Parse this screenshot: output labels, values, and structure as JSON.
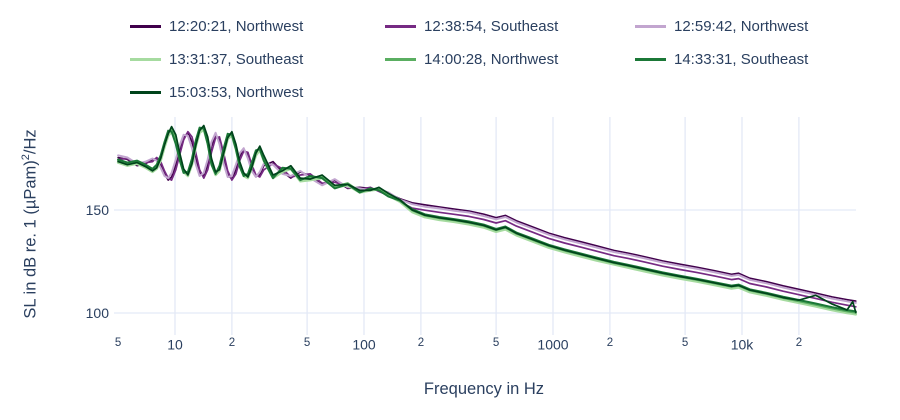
{
  "styles": {
    "background": "#ffffff",
    "text_color": "#2a3f5f",
    "grid_color": "#e3e9f6"
  },
  "chart_data": {
    "type": "line",
    "title": "",
    "xlabel": "Frequency in Hz",
    "ylabel": "SL in dB re. 1 (µPam)²/Hz",
    "ylabel_parts": {
      "pre": "SL in dB re. 1 (µPam)",
      "sup": "2",
      "post": "/Hz"
    },
    "xscale": "log",
    "xlim": [
      4.6,
      41000
    ],
    "ylim": [
      90,
      195
    ],
    "grid": true,
    "legend_position": "top-horizontal",
    "xticks": [
      {
        "value": 5,
        "label": "5",
        "minor": true,
        "grid": false
      },
      {
        "value": 10,
        "label": "10",
        "minor": false
      },
      {
        "value": 20,
        "label": "2",
        "minor": true
      },
      {
        "value": 50,
        "label": "5",
        "minor": true
      },
      {
        "value": 100,
        "label": "100",
        "minor": false
      },
      {
        "value": 200,
        "label": "2",
        "minor": true
      },
      {
        "value": 500,
        "label": "5",
        "minor": true
      },
      {
        "value": 1000,
        "label": "1000",
        "minor": false
      },
      {
        "value": 2000,
        "label": "2",
        "minor": true
      },
      {
        "value": 5000,
        "label": "5",
        "minor": true
      },
      {
        "value": 10000,
        "label": "10k",
        "minor": false
      },
      {
        "value": 20000,
        "label": "2",
        "minor": true
      }
    ],
    "yticks": [
      {
        "value": 150,
        "label": "150"
      },
      {
        "value": 100,
        "label": "100"
      }
    ],
    "x": [
      5,
      5.6,
      6.3,
      7,
      7.6,
      8,
      8.4,
      8.8,
      9.2,
      9.6,
      10.1,
      10.6,
      11.1,
      11.7,
      12.3,
      12.9,
      13.5,
      14.2,
      14.9,
      15.6,
      16.4,
      17.2,
      18.1,
      19,
      20,
      21,
      22,
      23.1,
      24.3,
      25.5,
      26.8,
      28.1,
      29.5,
      33,
      37,
      41,
      46,
      52,
      60,
      70,
      82,
      95,
      108,
      120,
      135,
      155,
      180,
      210,
      250,
      300,
      360,
      430,
      500,
      560,
      640,
      780,
      950,
      1150,
      1400,
      1700,
      2100,
      2500,
      3100,
      3800,
      4700,
      5800,
      7200,
      8800,
      9600,
      11000,
      13500,
      16500,
      20000,
      24500,
      30000,
      36000,
      38500,
      40000
    ],
    "series": [
      {
        "name": "12:20:21, Northwest",
        "color": "#40004b",
        "width": 1.6,
        "values": [
          175.5,
          174.5,
          171.5,
          172.5,
          174.5,
          175.0,
          172.0,
          167.5,
          164.5,
          166.0,
          172.0,
          179.5,
          185.5,
          187.5,
          183.0,
          174.5,
          168.0,
          166.5,
          172.0,
          181.0,
          186.5,
          184.0,
          174.5,
          167.0,
          165.0,
          169.5,
          176.0,
          179.5,
          176.5,
          170.5,
          166.5,
          167.0,
          171.5,
          173.5,
          168.5,
          165.5,
          168.5,
          166.5,
          162.5,
          164.5,
          160.5,
          161.0,
          160.5,
          159.5,
          158.0,
          155.5,
          153.5,
          152.5,
          151.5,
          150.5,
          149.5,
          148.0,
          146.3,
          147.4,
          144.8,
          141.8,
          138.8,
          136.6,
          134.6,
          132.6,
          130.4,
          129.1,
          127.2,
          125.3,
          123.7,
          122.2,
          120.5,
          118.8,
          119.3,
          116.9,
          115.2,
          113.2,
          111.5,
          109.7,
          107.8,
          106.5,
          106.0,
          105.8
        ]
      },
      {
        "name": "12:38:54, Southeast",
        "color": "#762a83",
        "width": 1.7,
        "values": [
          174.5,
          175.0,
          172.0,
          173.0,
          173.5,
          175.5,
          173.5,
          169.0,
          165.5,
          164.5,
          169.5,
          177.0,
          184.0,
          188.0,
          185.5,
          177.5,
          169.5,
          165.5,
          169.5,
          178.0,
          185.0,
          185.5,
          177.5,
          169.0,
          164.5,
          167.5,
          174.0,
          178.5,
          178.0,
          172.0,
          167.0,
          166.0,
          169.5,
          172.5,
          170.0,
          166.0,
          167.0,
          167.5,
          163.0,
          163.5,
          161.5,
          160.0,
          161.0,
          159.0,
          157.0,
          154.0,
          150.9,
          149.9,
          148.9,
          147.9,
          146.9,
          145.4,
          143.7,
          144.8,
          142.2,
          139.2,
          136.2,
          134.0,
          132.0,
          130.0,
          127.8,
          126.5,
          124.6,
          122.7,
          121.1,
          119.6,
          117.9,
          116.2,
          116.7,
          114.3,
          112.6,
          110.6,
          108.9,
          107.1,
          105.2,
          103.8,
          103.3,
          103.0
        ]
      },
      {
        "name": "12:59:42, Northwest",
        "color": "#c2a5cf",
        "width": 2.0,
        "values": [
          176.5,
          175.5,
          172.5,
          173.5,
          175.0,
          174.0,
          170.5,
          166.5,
          165.5,
          168.0,
          174.5,
          181.5,
          186.5,
          186.0,
          180.0,
          172.0,
          166.5,
          168.0,
          174.5,
          183.0,
          187.5,
          182.0,
          172.5,
          166.0,
          166.5,
          172.0,
          177.5,
          180.0,
          175.0,
          169.0,
          166.0,
          168.5,
          172.5,
          172.0,
          167.5,
          166.5,
          169.0,
          165.5,
          162.0,
          165.0,
          161.0,
          160.5,
          159.5,
          160.0,
          158.5,
          155.0,
          152.8,
          151.6,
          150.8,
          149.6,
          148.8,
          147.1,
          145.5,
          146.6,
          144.0,
          141.0,
          138.0,
          135.8,
          133.8,
          131.8,
          129.6,
          128.3,
          126.4,
          124.5,
          122.9,
          121.4,
          119.7,
          118.0,
          118.5,
          116.1,
          114.4,
          112.4,
          110.7,
          108.9,
          107.0,
          105.7,
          105.2,
          104.9
        ]
      },
      {
        "name": "13:31:37, Southeast",
        "color": "#a6dba0",
        "width": 2.5,
        "values": [
          173.0,
          171.5,
          172.5,
          170.5,
          168.5,
          170.0,
          174.0,
          180.5,
          186.0,
          188.0,
          183.5,
          175.0,
          168.5,
          166.5,
          172.0,
          181.0,
          187.5,
          189.0,
          182.5,
          172.5,
          167.0,
          169.0,
          177.0,
          184.5,
          186.0,
          179.5,
          171.5,
          166.5,
          165.5,
          170.5,
          176.5,
          179.0,
          174.0,
          165.5,
          168.5,
          170.0,
          164.0,
          164.5,
          165.5,
          161.0,
          162.0,
          158.5,
          159.5,
          160.0,
          157.0,
          154.0,
          149.0,
          146.5,
          145.2,
          144.2,
          143.0,
          141.5,
          139.4,
          140.6,
          137.7,
          134.7,
          131.7,
          129.5,
          127.5,
          125.5,
          123.6,
          122.0,
          120.1,
          118.3,
          116.7,
          115.2,
          113.5,
          111.9,
          112.4,
          110.1,
          108.4,
          106.5,
          104.9,
          103.2,
          101.4,
          100.0,
          99.6,
          99.3
        ]
      },
      {
        "name": "14:00:28, Northwest",
        "color": "#5aae61",
        "width": 2.0,
        "values": [
          174.0,
          172.5,
          173.5,
          171.5,
          169.5,
          171.0,
          175.5,
          182.0,
          187.5,
          189.5,
          185.0,
          176.5,
          169.5,
          167.5,
          173.0,
          182.5,
          189.0,
          190.5,
          184.0,
          173.5,
          168.0,
          170.0,
          178.5,
          186.0,
          187.5,
          181.0,
          172.5,
          167.5,
          166.5,
          171.5,
          178.0,
          180.5,
          175.5,
          166.5,
          169.5,
          171.0,
          165.0,
          165.5,
          166.5,
          161.5,
          163.0,
          159.0,
          160.0,
          160.5,
          157.5,
          154.5,
          149.8,
          147.3,
          146.0,
          145.0,
          143.8,
          142.3,
          140.2,
          141.4,
          138.5,
          135.5,
          132.5,
          130.3,
          128.3,
          126.3,
          124.2,
          122.8,
          120.9,
          119.1,
          117.5,
          116.0,
          114.3,
          112.7,
          113.2,
          110.9,
          109.2,
          107.3,
          105.7,
          104.0,
          102.2,
          100.8,
          100.4,
          100.1
        ]
      },
      {
        "name": "14:33:31, Southeast",
        "color": "#1b7837",
        "width": 2.0,
        "values": [
          174.5,
          173.0,
          174.0,
          172.0,
          170.0,
          172.0,
          176.5,
          183.0,
          188.5,
          188.0,
          182.0,
          174.0,
          168.0,
          168.5,
          175.0,
          184.0,
          190.0,
          189.5,
          182.0,
          172.0,
          167.5,
          171.5,
          180.0,
          187.0,
          186.5,
          179.5,
          171.0,
          166.5,
          167.5,
          173.0,
          179.0,
          179.5,
          174.0,
          165.5,
          170.5,
          170.0,
          164.5,
          166.5,
          165.5,
          160.5,
          162.5,
          158.5,
          160.5,
          159.5,
          156.5,
          154.5,
          150.4,
          147.9,
          146.6,
          145.6,
          144.4,
          142.9,
          140.8,
          142.0,
          139.1,
          136.1,
          133.1,
          130.9,
          128.9,
          126.9,
          124.8,
          123.4,
          121.5,
          119.7,
          118.1,
          116.6,
          114.9,
          113.3,
          113.8,
          111.5,
          109.8,
          107.9,
          106.3,
          104.6,
          102.8,
          101.4,
          101.0,
          100.7
        ]
      },
      {
        "name": "15:03:53, Northwest",
        "color": "#00441b",
        "width": 1.7,
        "values": [
          173.5,
          172.0,
          173.0,
          171.0,
          169.0,
          170.5,
          175.0,
          181.5,
          187.0,
          190.5,
          186.5,
          177.5,
          170.0,
          167.0,
          172.5,
          181.5,
          188.5,
          191.0,
          185.5,
          175.0,
          168.5,
          169.5,
          177.5,
          185.0,
          188.0,
          182.0,
          173.5,
          168.0,
          166.0,
          170.5,
          177.5,
          181.0,
          176.5,
          167.0,
          169.0,
          171.5,
          165.5,
          165.0,
          167.0,
          162.0,
          162.5,
          159.5,
          159.5,
          161.0,
          158.0,
          155.0,
          150.0,
          147.5,
          146.2,
          145.2,
          144.0,
          142.5,
          140.4,
          141.6,
          138.7,
          135.7,
          132.7,
          130.5,
          128.5,
          126.5,
          124.4,
          123.0,
          121.1,
          119.3,
          117.7,
          116.2,
          114.5,
          112.9,
          113.4,
          111.1,
          109.4,
          107.5,
          106.2,
          108.6,
          104.3,
          101.5,
          105.5,
          100.3
        ]
      }
    ]
  }
}
